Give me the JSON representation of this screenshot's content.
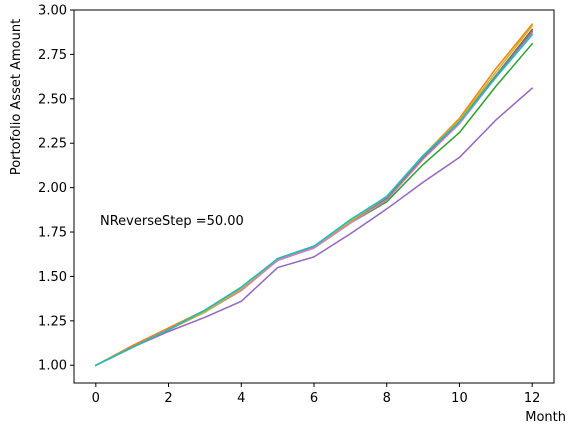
{
  "chart_data": {
    "type": "line",
    "xlabel": "Month",
    "ylabel": "Portofolio Asset Amount",
    "annotation": "NReverseStep =50.00",
    "xlim": [
      -0.6,
      12.6
    ],
    "ylim": [
      0.9,
      3.0
    ],
    "xticks": [
      0,
      2,
      4,
      6,
      8,
      10,
      12
    ],
    "xtick_labels": [
      "0",
      "2",
      "4",
      "6",
      "8",
      "10",
      "12"
    ],
    "yticks": [
      1.0,
      1.25,
      1.5,
      1.75,
      2.0,
      2.25,
      2.5,
      2.75,
      3.0
    ],
    "ytick_labels": [
      "1.00",
      "1.25",
      "1.50",
      "1.75",
      "2.00",
      "2.25",
      "2.50",
      "2.75",
      "3.00"
    ],
    "grid": false,
    "x": [
      0,
      1,
      2,
      3,
      4,
      5,
      6,
      7,
      8,
      9,
      10,
      11,
      12
    ],
    "series": [
      {
        "color": "#1f77b4",
        "values": [
          1.0,
          1.1,
          1.2,
          1.3,
          1.43,
          1.6,
          1.67,
          1.81,
          1.95,
          2.17,
          2.37,
          2.63,
          2.88
        ]
      },
      {
        "color": "#ff7f0e",
        "values": [
          1.0,
          1.11,
          1.21,
          1.31,
          1.44,
          1.6,
          1.67,
          1.81,
          1.95,
          2.18,
          2.39,
          2.67,
          2.92
        ]
      },
      {
        "color": "#2ca02c",
        "values": [
          1.0,
          1.1,
          1.2,
          1.3,
          1.43,
          1.59,
          1.66,
          1.8,
          1.92,
          2.13,
          2.31,
          2.57,
          2.81
        ]
      },
      {
        "color": "#d62728",
        "values": [
          1.0,
          1.1,
          1.2,
          1.3,
          1.43,
          1.6,
          1.67,
          1.81,
          1.94,
          2.17,
          2.37,
          2.63,
          2.89
        ]
      },
      {
        "color": "#9467bd",
        "values": [
          1.0,
          1.1,
          1.19,
          1.27,
          1.36,
          1.55,
          1.61,
          1.74,
          1.88,
          2.03,
          2.17,
          2.38,
          2.56
        ]
      },
      {
        "color": "#8c564b",
        "values": [
          1.0,
          1.1,
          1.2,
          1.3,
          1.43,
          1.6,
          1.67,
          1.81,
          1.94,
          2.17,
          2.37,
          2.63,
          2.89
        ]
      },
      {
        "color": "#e377c2",
        "values": [
          1.0,
          1.1,
          1.2,
          1.3,
          1.42,
          1.59,
          1.66,
          1.8,
          1.93,
          2.16,
          2.36,
          2.62,
          2.87
        ]
      },
      {
        "color": "#7f7f7f",
        "values": [
          1.0,
          1.1,
          1.2,
          1.3,
          1.43,
          1.6,
          1.67,
          1.81,
          1.94,
          2.17,
          2.37,
          2.63,
          2.88
        ]
      },
      {
        "color": "#bcbd22",
        "values": [
          1.0,
          1.1,
          1.2,
          1.3,
          1.43,
          1.6,
          1.67,
          1.81,
          1.95,
          2.18,
          2.38,
          2.65,
          2.91
        ]
      },
      {
        "color": "#17becf",
        "values": [
          1.0,
          1.1,
          1.2,
          1.31,
          1.44,
          1.6,
          1.67,
          1.82,
          1.95,
          2.18,
          2.37,
          2.62,
          2.86
        ]
      }
    ]
  }
}
